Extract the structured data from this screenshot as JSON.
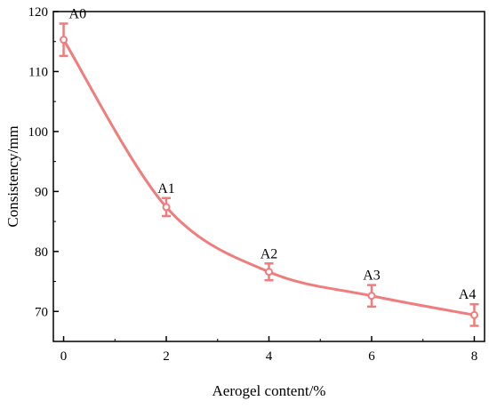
{
  "chart_data": {
    "type": "line",
    "title": "",
    "xlabel": "Aerogel content/%",
    "ylabel": "Consistency/mm",
    "xlim": [
      -0.2,
      8.2
    ],
    "ylim": [
      65,
      120
    ],
    "x_ticks": [
      0,
      2,
      4,
      6,
      8
    ],
    "y_ticks": [
      70,
      80,
      90,
      100,
      110,
      120
    ],
    "grid": false,
    "legend": "none",
    "series": [
      {
        "color": "#f07c7c",
        "points": [
          {
            "label": "A0",
            "x": 0,
            "y": 115.3,
            "err": 2.7
          },
          {
            "label": "A1",
            "x": 2,
            "y": 87.4,
            "err": 1.5
          },
          {
            "label": "A2",
            "x": 4,
            "y": 76.6,
            "err": 1.4
          },
          {
            "label": "A3",
            "x": 6,
            "y": 72.6,
            "err": 1.8
          },
          {
            "label": "A4",
            "x": 8,
            "y": 69.4,
            "err": 1.8
          }
        ]
      }
    ]
  }
}
